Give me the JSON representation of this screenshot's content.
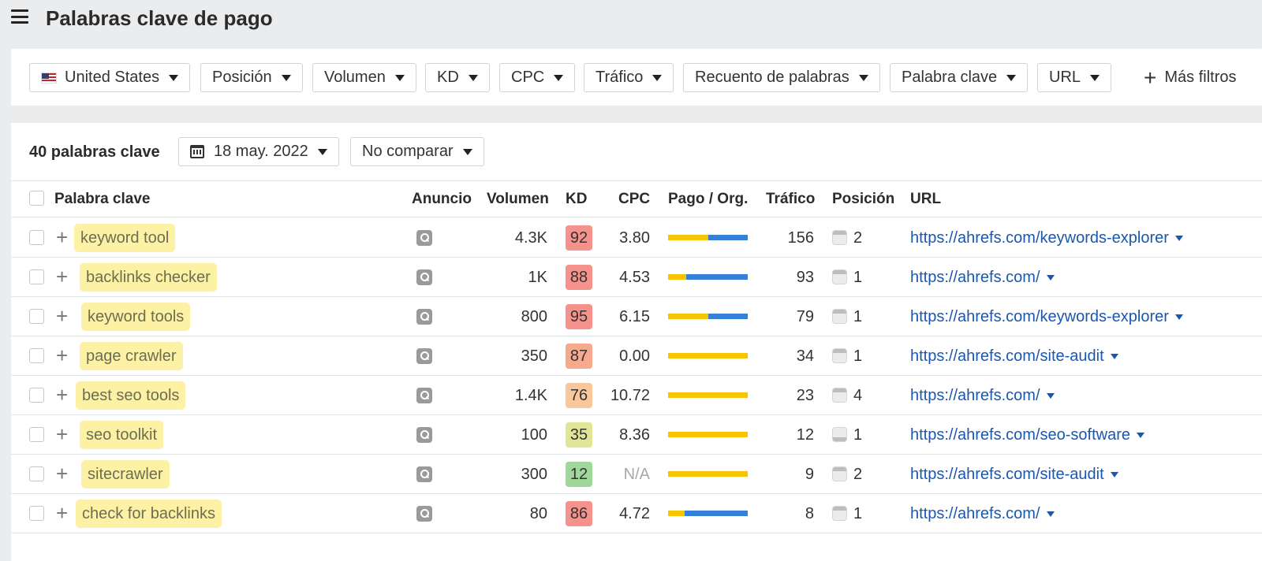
{
  "header": {
    "title": "Palabras clave de pago"
  },
  "filters": [
    {
      "label": "United States"
    },
    {
      "label": "Posición"
    },
    {
      "label": "Volumen"
    },
    {
      "label": "KD"
    },
    {
      "label": "CPC"
    },
    {
      "label": "Tráfico"
    },
    {
      "label": "Recuento de palabras"
    },
    {
      "label": "Palabra clave"
    },
    {
      "label": "URL"
    }
  ],
  "more_filters": "Más filtros",
  "summary": {
    "count_label": "40 palabras clave",
    "date": "18 may. 2022",
    "compare": "No comparar"
  },
  "columns": {
    "keyword": "Palabra clave",
    "ad": "Anuncio",
    "volume": "Volumen",
    "kd": "KD",
    "cpc": "CPC",
    "paid_org": "Pago / Org.",
    "traffic": "Tráfico",
    "position": "Posición",
    "url": "URL"
  },
  "colors": {
    "paid_bar": "#f7c500",
    "organic_bar": "#3580d9",
    "kd_hard": "#f5928b",
    "kd_hard_alt": "#f7a98d",
    "kd_medium": "#f9c79c",
    "kd_easy_yellow": "#e3e596",
    "kd_easy_green": "#9fd89a",
    "link": "#1a57b0",
    "keyword_highlight": "#fdf1a6"
  },
  "rows": [
    {
      "keyword": "keyword tool",
      "volume": "4.3K",
      "kd": "92",
      "kd_color": "#f5928b",
      "cpc": "3.80",
      "paid_fraction": 0.5,
      "traffic": "156",
      "position": "2",
      "url": "https://ahrefs.com/keywords-explorer",
      "serp_icon": "top"
    },
    {
      "keyword": "backlinks checker",
      "volume": "1K",
      "kd": "88",
      "kd_color": "#f5928b",
      "cpc": "4.53",
      "paid_fraction": 0.23,
      "traffic": "93",
      "position": "1",
      "url": "https://ahrefs.com/",
      "serp_icon": "top"
    },
    {
      "keyword": "keyword tools",
      "volume": "800",
      "kd": "95",
      "kd_color": "#f5928b",
      "cpc": "6.15",
      "paid_fraction": 0.5,
      "traffic": "79",
      "position": "1",
      "url": "https://ahrefs.com/keywords-explorer",
      "serp_icon": "top"
    },
    {
      "keyword": "page crawler",
      "volume": "350",
      "kd": "87",
      "kd_color": "#f7a98d",
      "cpc": "0.00",
      "paid_fraction": 1.0,
      "traffic": "34",
      "position": "1",
      "url": "https://ahrefs.com/site-audit",
      "serp_icon": "top"
    },
    {
      "keyword": "best seo tools",
      "volume": "1.4K",
      "kd": "76",
      "kd_color": "#f9c79c",
      "cpc": "10.72",
      "paid_fraction": 1.0,
      "traffic": "23",
      "position": "4",
      "url": "https://ahrefs.com/",
      "serp_icon": "top"
    },
    {
      "keyword": "seo toolkit",
      "volume": "100",
      "kd": "35",
      "kd_color": "#e3e596",
      "cpc": "8.36",
      "paid_fraction": 1.0,
      "traffic": "12",
      "position": "1",
      "url": "https://ahrefs.com/seo-software",
      "serp_icon": "bottom"
    },
    {
      "keyword": "sitecrawler",
      "volume": "300",
      "kd": "12",
      "kd_color": "#9fd89a",
      "cpc": "N/A",
      "paid_fraction": 1.0,
      "traffic": "9",
      "position": "2",
      "url": "https://ahrefs.com/site-audit",
      "serp_icon": "top"
    },
    {
      "keyword": "check for backlinks",
      "volume": "80",
      "kd": "86",
      "kd_color": "#f5928b",
      "cpc": "4.72",
      "paid_fraction": 0.21,
      "traffic": "8",
      "position": "1",
      "url": "https://ahrefs.com/",
      "serp_icon": "top"
    }
  ]
}
